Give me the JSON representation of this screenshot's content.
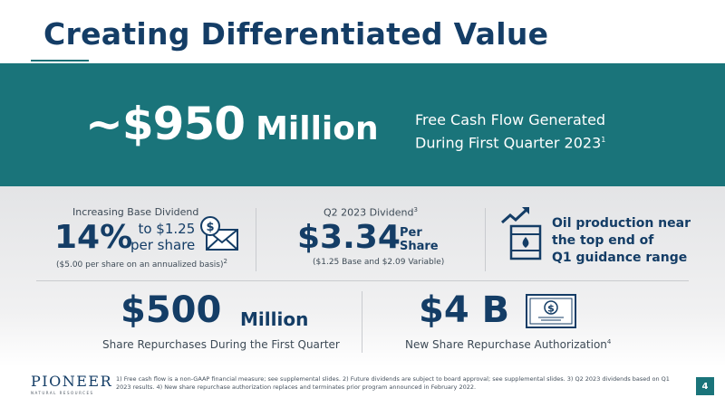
{
  "title": "Creating Differentiated Value",
  "banner": {
    "amount": "~$950",
    "unit": "Million",
    "desc_line1": "Free Cash Flow Generated",
    "desc_line2": "During First Quarter 2023",
    "desc_sup": "1"
  },
  "dividend": {
    "heading": "Increasing Base Dividend",
    "pct": "14%",
    "to_line1": "to $1.25",
    "to_line2": "per share",
    "note": "($5.00 per share on an annualized basis)",
    "note_sup": "2",
    "icon": "dollar-envelope-icon"
  },
  "q2_dividend": {
    "heading": "Q2 2023 Dividend",
    "heading_sup": "3",
    "value": "$3.34",
    "per_line1": "Per",
    "per_line2": "Share",
    "note": "($1.25 Base and $2.09 Variable)"
  },
  "oil": {
    "line1": "Oil production near",
    "line2": "the top end of",
    "line3": "Q1 guidance range",
    "icon": "oil-barrel-growth-icon"
  },
  "repurchase": {
    "value": "$500",
    "unit": "Million",
    "label": "Share Repurchases During the First Quarter"
  },
  "authorization": {
    "value": "$4 B",
    "label": "New Share Repurchase Authorization",
    "label_sup": "4",
    "icon": "dollar-bill-icon"
  },
  "logo": {
    "name": "PIONEER",
    "sub": "NATURAL RESOURCES"
  },
  "footnotes": "1) Free cash flow is a non-GAAP financial measure; see supplemental slides. 2) Future dividends are subject to board approval; see supplemental slides. 3) Q2 2023 dividends based on Q1 2023 results. 4) New share repurchase authorization replaces and terminates prior program announced in February 2022.",
  "page_number": "4",
  "colors": {
    "navy": "#143d66",
    "teal": "#1a747a",
    "grey_panel": "#e3e4e6"
  }
}
